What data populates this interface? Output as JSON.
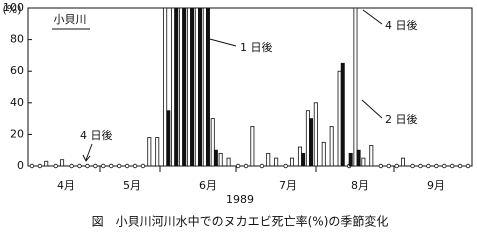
{
  "chart_data": {
    "type": "bar",
    "title": "小貝川",
    "caption": "図　小貝川河川水中でのヌカエビ死亡率(%)の季節変化",
    "y_label": "(%)",
    "x_label": "1989",
    "month_labels": [
      "4月",
      "5月",
      "6月",
      "7月",
      "8月",
      "9月"
    ],
    "annotations": [
      "1 日後",
      "4 日後",
      "2 日後",
      "4 日後"
    ],
    "categories": [
      null,
      null,
      null,
      null,
      null,
      null,
      null,
      null,
      null,
      null,
      null,
      null,
      null,
      null,
      null,
      null,
      null,
      null,
      null,
      null,
      null,
      null,
      null,
      null,
      null,
      null,
      null,
      null,
      null,
      null,
      null,
      null,
      null,
      null,
      null,
      null,
      null,
      null,
      null,
      null,
      null,
      null,
      null,
      null,
      null,
      null,
      null,
      null,
      null,
      null,
      null,
      null,
      null,
      null,
      null,
      null
    ],
    "series": [
      {
        "color": "#ffffff",
        "values": [
          0,
          0,
          3,
          0,
          4,
          0,
          0,
          0,
          0,
          0,
          0,
          0,
          0,
          0,
          0,
          18,
          18,
          100,
          100,
          100,
          100,
          100,
          100,
          30,
          8,
          5,
          0,
          0,
          25,
          0,
          8,
          5,
          0,
          5,
          12,
          35,
          40,
          15,
          25,
          60,
          0,
          100,
          5,
          13,
          0,
          0,
          0,
          5,
          0,
          0,
          0,
          0,
          0,
          0,
          0,
          0
        ]
      },
      {
        "color": "#111111",
        "values": [
          0,
          0,
          0,
          0,
          0,
          0,
          0,
          0,
          0,
          0,
          0,
          0,
          0,
          0,
          0,
          0,
          0,
          35,
          100,
          100,
          100,
          100,
          100,
          10,
          0,
          0,
          0,
          0,
          0,
          0,
          0,
          0,
          0,
          0,
          8,
          30,
          0,
          0,
          0,
          65,
          8,
          10,
          0,
          0,
          0,
          0,
          0,
          0,
          0,
          0,
          0,
          0,
          0,
          0,
          0,
          0
        ]
      }
    ],
    "ylim": [
      0,
      100
    ],
    "yticks": [
      0,
      20,
      40,
      60,
      80,
      100
    ],
    "grid": false
  }
}
